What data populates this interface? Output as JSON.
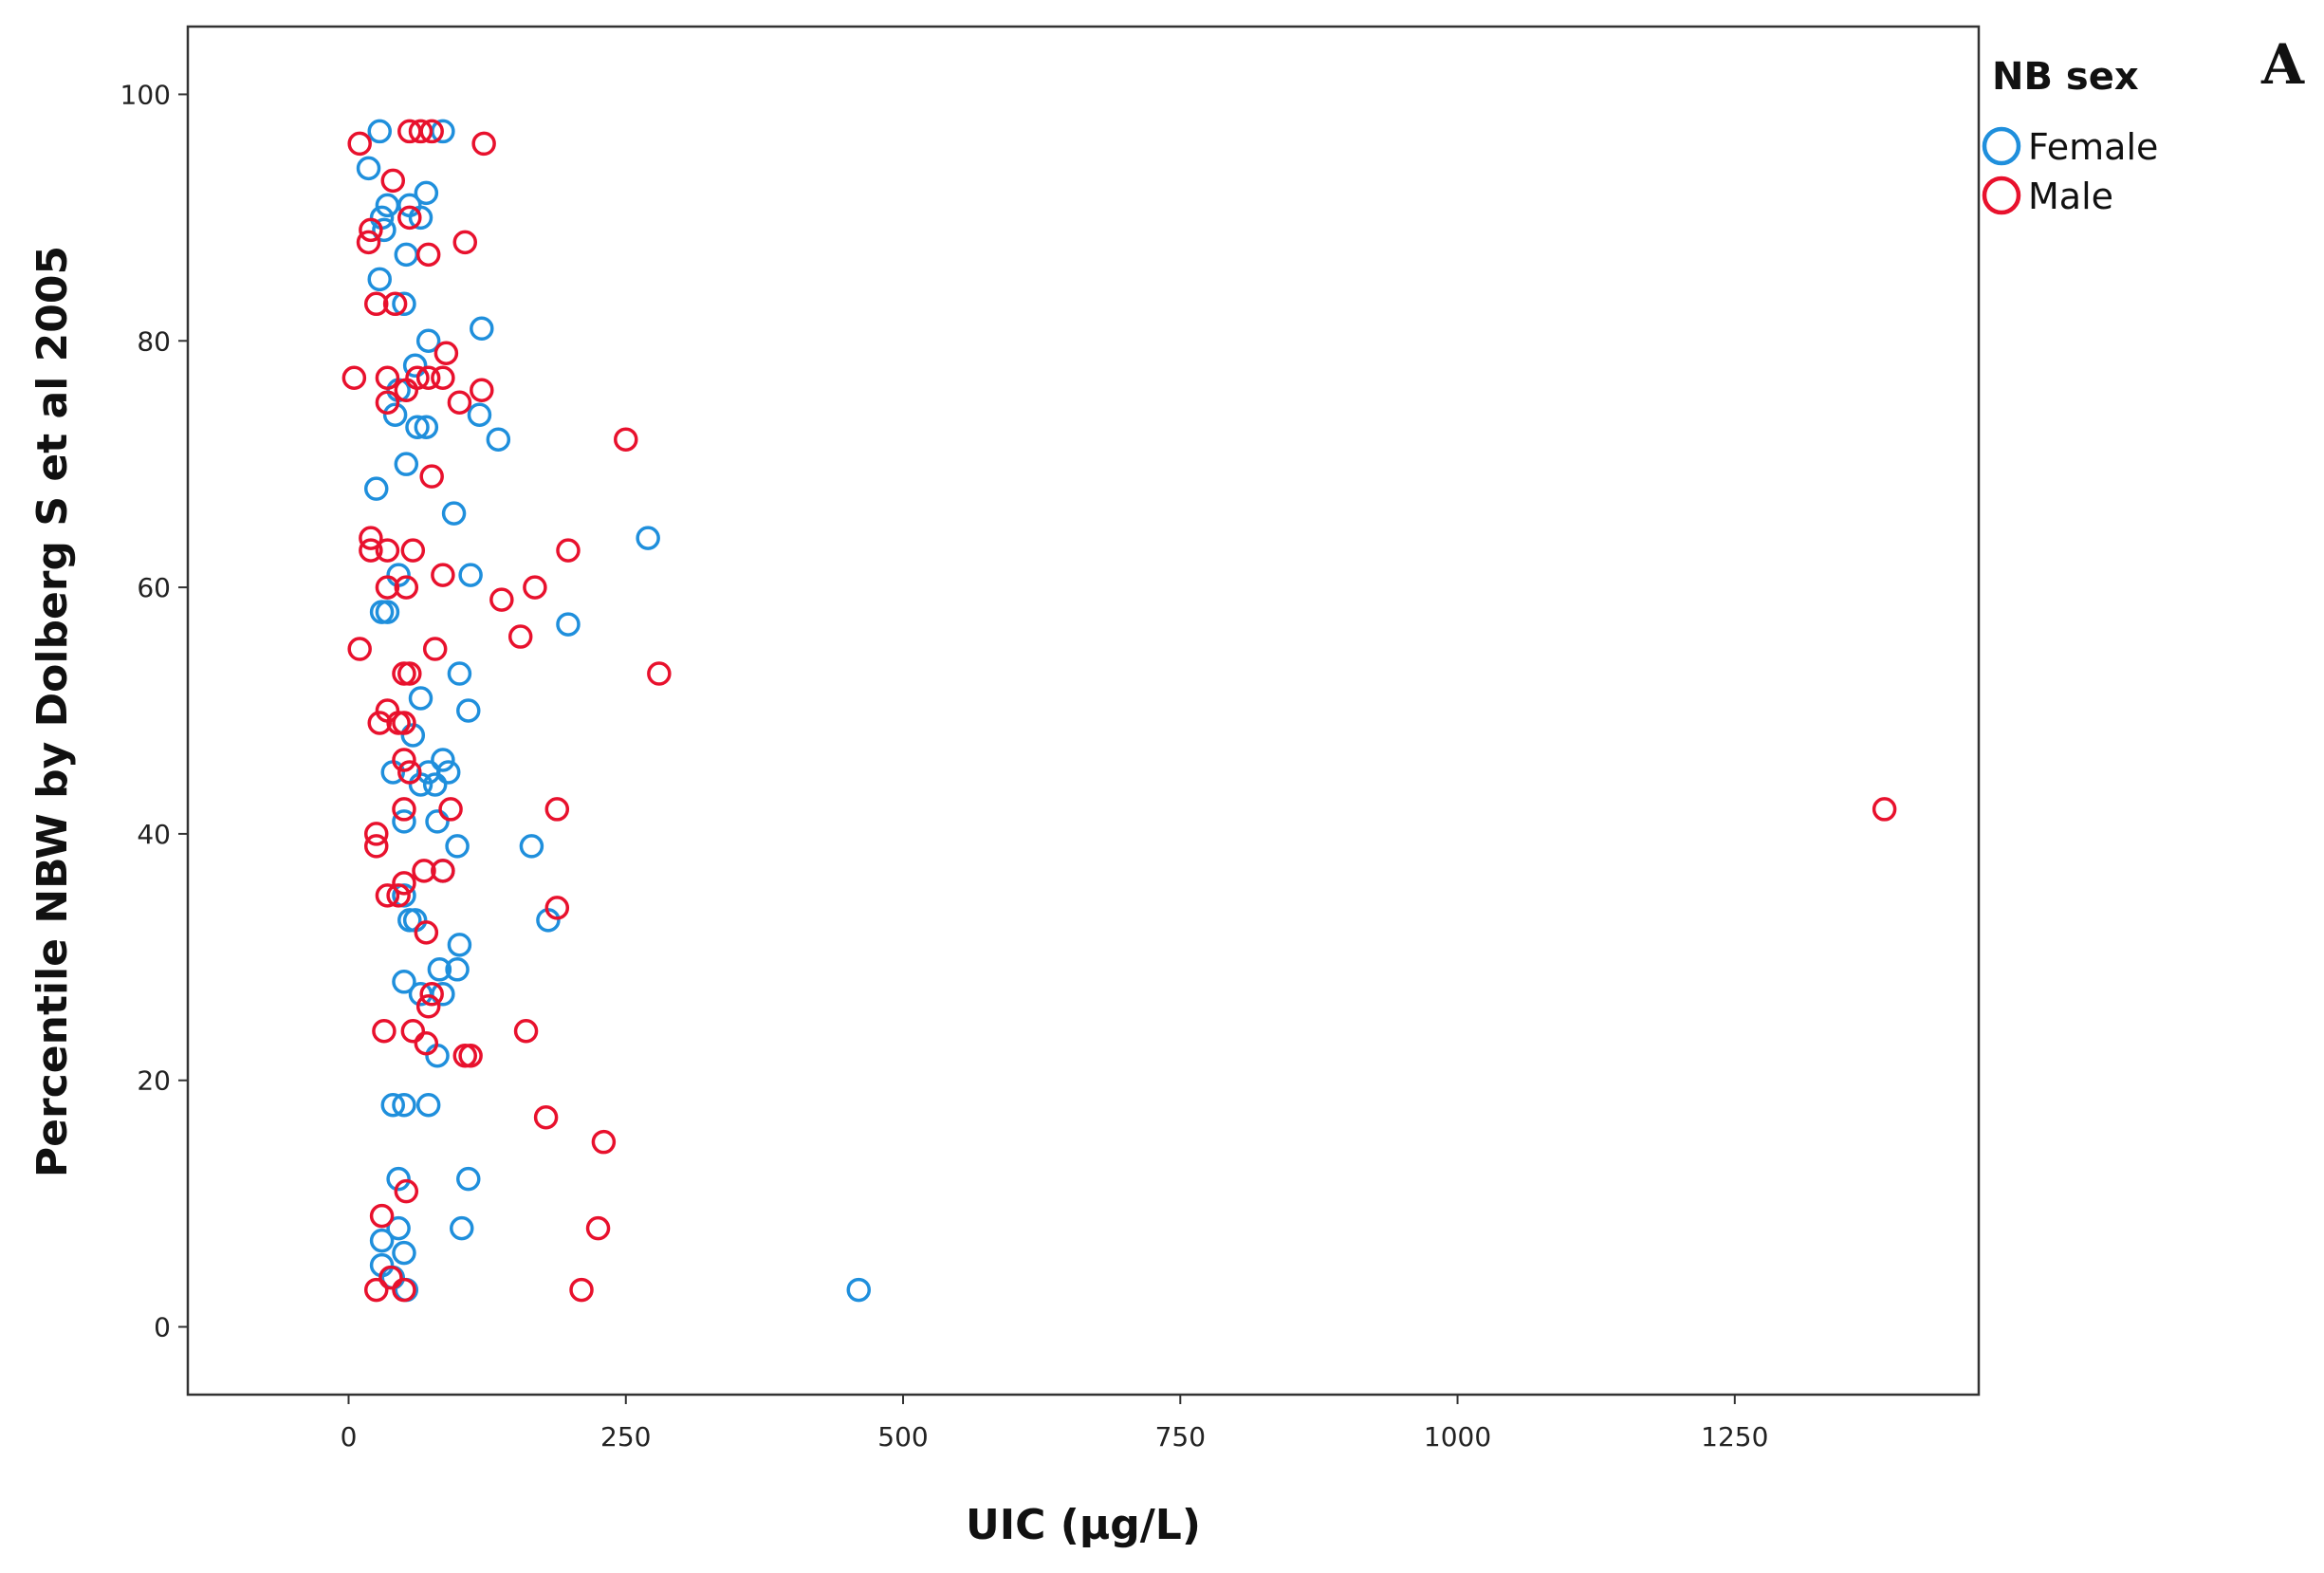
{
  "panel_label": "A",
  "colors": {
    "female": "#1f8fdc",
    "male": "#e8112d",
    "frame": "#333333"
  },
  "chart_data": {
    "type": "scatter",
    "title": "",
    "xlabel": "UIC (µg/L)",
    "ylabel": "Percentile NBW by Dolberg S et al 2005",
    "xlim": [
      -145,
      1470
    ],
    "ylim": [
      -5.5,
      105.5
    ],
    "xticks": [
      0,
      250,
      500,
      750,
      1000,
      1250
    ],
    "yticks": [
      0,
      20,
      40,
      60,
      80,
      100
    ],
    "grid": false,
    "legend": {
      "title": "NB sex",
      "position": "top-right",
      "entries": [
        "Female",
        "Male"
      ]
    },
    "series": [
      {
        "name": "Female",
        "color": "#1f8fdc",
        "points": [
          [
            28,
            97
          ],
          [
            85,
            97
          ],
          [
            18,
            94
          ],
          [
            35,
            91
          ],
          [
            70,
            92
          ],
          [
            55,
            91
          ],
          [
            30,
            90
          ],
          [
            65,
            90
          ],
          [
            32,
            89
          ],
          [
            52,
            87
          ],
          [
            28,
            85
          ],
          [
            50,
            83
          ],
          [
            120,
            81
          ],
          [
            72,
            80
          ],
          [
            60,
            78
          ],
          [
            45,
            76
          ],
          [
            118,
            74
          ],
          [
            42,
            74
          ],
          [
            62,
            73
          ],
          [
            70,
            73
          ],
          [
            135,
            72
          ],
          [
            52,
            70
          ],
          [
            25,
            68
          ],
          [
            95,
            66
          ],
          [
            270,
            64
          ],
          [
            45,
            61
          ],
          [
            110,
            61
          ],
          [
            30,
            58
          ],
          [
            35,
            58
          ],
          [
            198,
            57
          ],
          [
            100,
            53
          ],
          [
            65,
            51
          ],
          [
            108,
            50
          ],
          [
            58,
            48
          ],
          [
            85,
            46
          ],
          [
            40,
            45
          ],
          [
            72,
            45
          ],
          [
            90,
            45
          ],
          [
            65,
            44
          ],
          [
            78,
            44
          ],
          [
            50,
            41
          ],
          [
            80,
            41
          ],
          [
            98,
            39
          ],
          [
            165,
            39
          ],
          [
            85,
            37
          ],
          [
            50,
            35
          ],
          [
            55,
            33
          ],
          [
            60,
            33
          ],
          [
            180,
            33
          ],
          [
            100,
            31
          ],
          [
            82,
            29
          ],
          [
            98,
            29
          ],
          [
            50,
            28
          ],
          [
            85,
            27
          ],
          [
            65,
            27
          ],
          [
            80,
            22
          ],
          [
            40,
            18
          ],
          [
            50,
            18
          ],
          [
            72,
            18
          ],
          [
            45,
            12
          ],
          [
            108,
            12
          ],
          [
            45,
            8
          ],
          [
            102,
            8
          ],
          [
            30,
            7
          ],
          [
            50,
            6
          ],
          [
            30,
            5
          ],
          [
            40,
            4
          ],
          [
            52,
            3
          ],
          [
            460,
            3
          ]
        ]
      },
      {
        "name": "Male",
        "color": "#e8112d",
        "points": [
          [
            10,
            96
          ],
          [
            55,
            97
          ],
          [
            65,
            97
          ],
          [
            75,
            97
          ],
          [
            122,
            96
          ],
          [
            40,
            93
          ],
          [
            55,
            90
          ],
          [
            20,
            89
          ],
          [
            18,
            88
          ],
          [
            105,
            88
          ],
          [
            72,
            87
          ],
          [
            25,
            83
          ],
          [
            42,
            83
          ],
          [
            88,
            79
          ],
          [
            5,
            77
          ],
          [
            35,
            77
          ],
          [
            62,
            77
          ],
          [
            72,
            77
          ],
          [
            85,
            77
          ],
          [
            35,
            75
          ],
          [
            52,
            76
          ],
          [
            120,
            76
          ],
          [
            100,
            75
          ],
          [
            250,
            72
          ],
          [
            75,
            69
          ],
          [
            20,
            64
          ],
          [
            20,
            63
          ],
          [
            35,
            63
          ],
          [
            58,
            63
          ],
          [
            198,
            63
          ],
          [
            85,
            61
          ],
          [
            35,
            60
          ],
          [
            52,
            60
          ],
          [
            168,
            60
          ],
          [
            138,
            59
          ],
          [
            155,
            56
          ],
          [
            10,
            55
          ],
          [
            78,
            55
          ],
          [
            280,
            53
          ],
          [
            50,
            53
          ],
          [
            55,
            53
          ],
          [
            35,
            50
          ],
          [
            28,
            49
          ],
          [
            50,
            49
          ],
          [
            45,
            49
          ],
          [
            50,
            46
          ],
          [
            55,
            45
          ],
          [
            188,
            42
          ],
          [
            92,
            42
          ],
          [
            50,
            42
          ],
          [
            1385,
            42
          ],
          [
            25,
            40
          ],
          [
            25,
            39
          ],
          [
            68,
            37
          ],
          [
            85,
            37
          ],
          [
            188,
            34
          ],
          [
            35,
            35
          ],
          [
            50,
            36
          ],
          [
            45,
            35
          ],
          [
            70,
            32
          ],
          [
            75,
            27
          ],
          [
            72,
            26
          ],
          [
            32,
            24
          ],
          [
            58,
            24
          ],
          [
            70,
            23
          ],
          [
            160,
            24
          ],
          [
            105,
            22
          ],
          [
            110,
            22
          ],
          [
            178,
            17
          ],
          [
            230,
            15
          ],
          [
            52,
            11
          ],
          [
            30,
            9
          ],
          [
            225,
            8
          ],
          [
            38,
            4
          ],
          [
            25,
            3
          ],
          [
            50,
            3
          ],
          [
            210,
            3
          ]
        ]
      }
    ]
  }
}
